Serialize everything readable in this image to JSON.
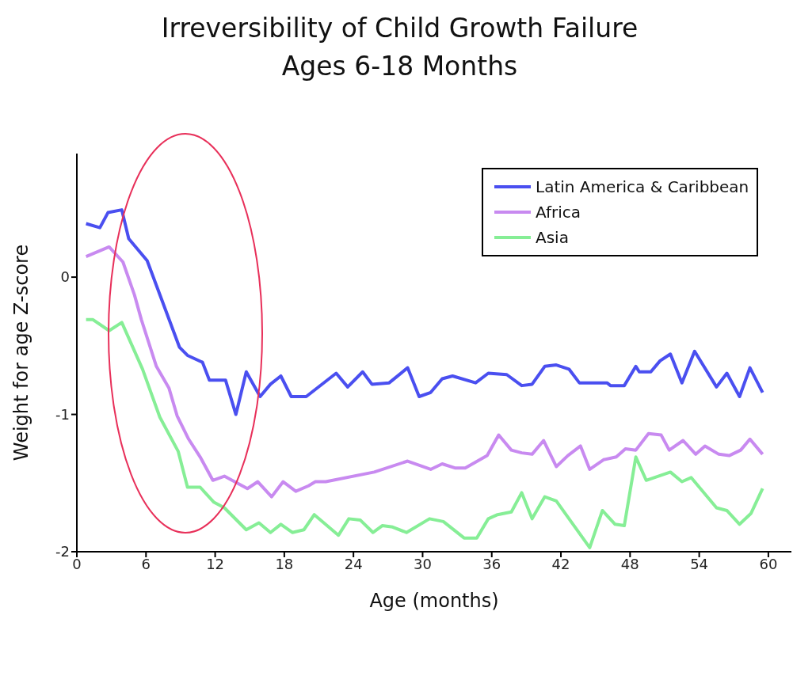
{
  "chart_data": {
    "type": "line",
    "title": "Irreversibility of Child Growth Failure",
    "subtitle": "Ages 6-18 Months",
    "xlabel": "Age (months)",
    "ylabel": "Weight for age Z-score",
    "xlim": [
      0,
      62
    ],
    "xticks": [
      0,
      6,
      12,
      18,
      24,
      30,
      36,
      42,
      48,
      54,
      60
    ],
    "ylim": [
      -2,
      0.9
    ],
    "yticks": [
      -2,
      -1,
      0
    ],
    "grid": false,
    "legend": "top right",
    "marker": "none",
    "line_style": "solid",
    "series": [
      {
        "name": "Latin America & Caribbean",
        "color": "#4a4ff0",
        "x": [
          0.8,
          2,
          2.7,
          3.9,
          4.5,
          6.1,
          8.9,
          9.6,
          10.9,
          11.5,
          12.9,
          13.8,
          14.7,
          15.9,
          16.8,
          17.7,
          18.6,
          19.9,
          22.5,
          23.5,
          24.8,
          25.6,
          27.1,
          28.7,
          29.7,
          30.7,
          31.7,
          32.6,
          34.6,
          35.7,
          37.3,
          38.6,
          39.5,
          40.6,
          41.6,
          42.7,
          43.6,
          46,
          46.3,
          47.5,
          48.5,
          48.8,
          49.8,
          50.6,
          51.5,
          52.5,
          53.6,
          55.5,
          56.4,
          57.5,
          58.4,
          59.5
        ],
        "values": [
          0.39,
          0.36,
          0.47,
          0.49,
          0.28,
          0.12,
          -0.51,
          -0.57,
          -0.62,
          -0.75,
          -0.75,
          -1.0,
          -0.69,
          -0.87,
          -0.78,
          -0.72,
          -0.87,
          -0.87,
          -0.7,
          -0.8,
          -0.69,
          -0.78,
          -0.77,
          -0.66,
          -0.87,
          -0.84,
          -0.74,
          -0.72,
          -0.77,
          -0.7,
          -0.71,
          -0.79,
          -0.78,
          -0.65,
          -0.64,
          -0.67,
          -0.77,
          -0.77,
          -0.79,
          -0.79,
          -0.65,
          -0.69,
          -0.69,
          -0.61,
          -0.56,
          -0.77,
          -0.54,
          -0.8,
          -0.7,
          -0.87,
          -0.66,
          -0.84
        ]
      },
      {
        "name": "Africa",
        "color": "#c88af0",
        "x": [
          0.8,
          2.8,
          4,
          5,
          5.6,
          6.9,
          8,
          8.7,
          9.7,
          10.7,
          11.8,
          12.8,
          14.8,
          15.7,
          16.9,
          17.9,
          19,
          20.1,
          20.7,
          21.6,
          25.8,
          28.7,
          30.7,
          31.7,
          32.8,
          33.7,
          35.6,
          36.6,
          37.7,
          38.6,
          39.5,
          40.5,
          41.6,
          42.6,
          43.7,
          44.5,
          45.7,
          46.8,
          47.6,
          48.5,
          49.6,
          50.7,
          51.4,
          52.6,
          53.7,
          54.5,
          55.7,
          56.6,
          57.6,
          58.4,
          59.5
        ],
        "values": [
          0.15,
          0.22,
          0.11,
          -0.13,
          -0.31,
          -0.65,
          -0.81,
          -1.01,
          -1.18,
          -1.31,
          -1.48,
          -1.45,
          -1.54,
          -1.49,
          -1.6,
          -1.49,
          -1.56,
          -1.52,
          -1.49,
          -1.49,
          -1.42,
          -1.34,
          -1.4,
          -1.36,
          -1.39,
          -1.39,
          -1.3,
          -1.15,
          -1.26,
          -1.28,
          -1.29,
          -1.19,
          -1.38,
          -1.3,
          -1.23,
          -1.4,
          -1.33,
          -1.31,
          -1.25,
          -1.26,
          -1.14,
          -1.15,
          -1.26,
          -1.19,
          -1.29,
          -1.23,
          -1.29,
          -1.3,
          -1.26,
          -1.18,
          -1.29
        ]
      },
      {
        "name": "Asia",
        "color": "#86ee96",
        "x": [
          0.8,
          1.4,
          2.8,
          3.9,
          5.7,
          7.2,
          8.8,
          9.6,
          10.7,
          11.9,
          12.8,
          14.7,
          15.8,
          16.8,
          17.7,
          18.7,
          19.7,
          20.6,
          22.7,
          23.6,
          24.6,
          25.7,
          26.5,
          27.4,
          28.6,
          30.6,
          31.8,
          33.6,
          34.7,
          35.7,
          36.5,
          37.7,
          38.6,
          39.5,
          40.6,
          41.6,
          44.5,
          45.6,
          46.7,
          47.5,
          48.5,
          49.4,
          51.5,
          52.5,
          53.3,
          55.5,
          56.4,
          57.5,
          58.5,
          59.5
        ],
        "values": [
          -0.31,
          -0.31,
          -0.39,
          -0.33,
          -0.67,
          -1.02,
          -1.27,
          -1.53,
          -1.53,
          -1.64,
          -1.68,
          -1.84,
          -1.79,
          -1.86,
          -1.8,
          -1.86,
          -1.84,
          -1.73,
          -1.88,
          -1.76,
          -1.77,
          -1.86,
          -1.81,
          -1.82,
          -1.86,
          -1.76,
          -1.78,
          -1.9,
          -1.9,
          -1.76,
          -1.73,
          -1.71,
          -1.57,
          -1.76,
          -1.6,
          -1.63,
          -1.97,
          -1.7,
          -1.8,
          -1.81,
          -1.31,
          -1.48,
          -1.42,
          -1.49,
          -1.46,
          -1.68,
          -1.7,
          -1.8,
          -1.72,
          -1.54
        ]
      }
    ]
  }
}
